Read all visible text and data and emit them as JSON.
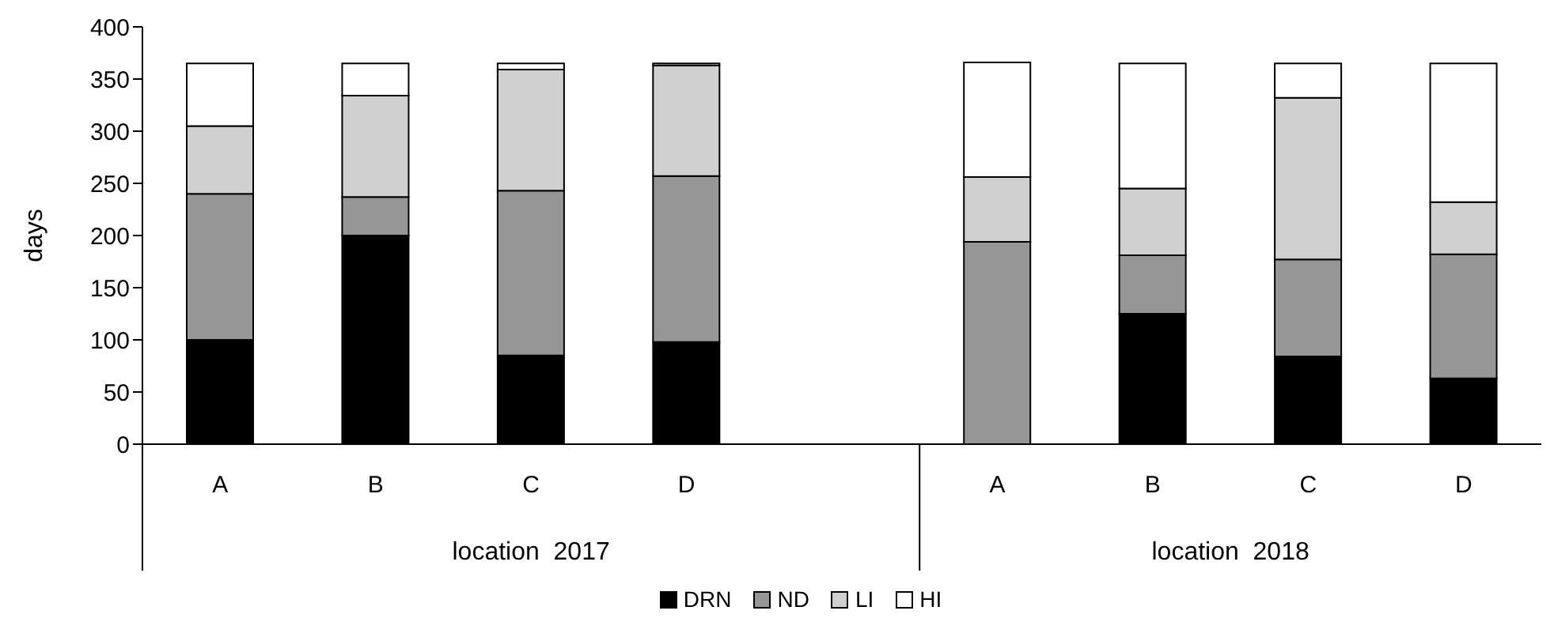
{
  "chart_data": {
    "type": "bar",
    "stacked": true,
    "ylabel": "days",
    "categories": [
      "A",
      "B",
      "C",
      "D",
      null,
      "A",
      "B",
      "C",
      "D"
    ],
    "series": [
      {
        "name": "DRN",
        "color": "#000000",
        "values": [
          100,
          200,
          85,
          98,
          null,
          0,
          125,
          84,
          63
        ]
      },
      {
        "name": "ND",
        "color": "#969696",
        "values": [
          140,
          37,
          158,
          159,
          null,
          194,
          56,
          93,
          119
        ]
      },
      {
        "name": "LI",
        "color": "#d0d0d0",
        "values": [
          65,
          97,
          116,
          106,
          null,
          62,
          64,
          155,
          50
        ]
      },
      {
        "name": "HI",
        "color": "#ffffff",
        "values": [
          60,
          31,
          6,
          2,
          null,
          110,
          120,
          33,
          133
        ]
      }
    ],
    "ylim": [
      0,
      400
    ],
    "yticks": [
      0,
      50,
      100,
      150,
      200,
      250,
      300,
      350,
      400
    ],
    "grid": false,
    "legend": "bottom",
    "annotations": [
      "location  2017",
      "location  2018"
    ]
  }
}
